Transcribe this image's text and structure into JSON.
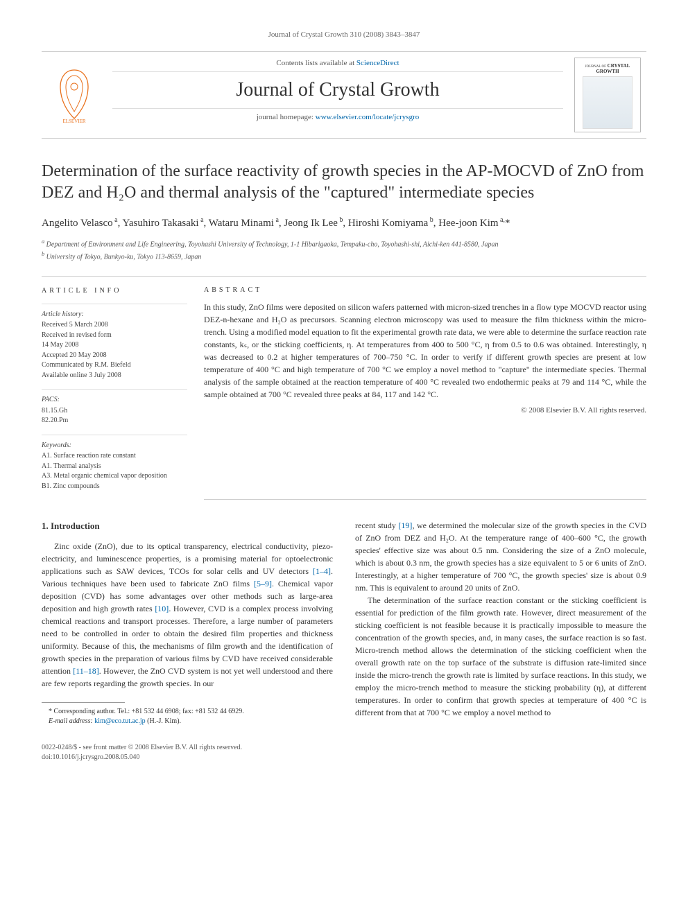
{
  "running_head": "Journal of Crystal Growth 310 (2008) 3843–3847",
  "masthead": {
    "contents_prefix": "Contents lists available at ",
    "contents_link": "ScienceDirect",
    "journal_title": "Journal of Crystal Growth",
    "homepage_prefix": "journal homepage: ",
    "homepage_link": "www.elsevier.com/locate/jcrysgro",
    "cover_label_small": "JOURNAL OF",
    "cover_label": "CRYSTAL GROWTH"
  },
  "article": {
    "title": "Determination of the surface reactivity of growth species in the AP-MOCVD of ZnO from DEZ and H₂O and thermal analysis of the \"captured\" intermediate species",
    "authors_html": "Angelito Velasco<sup> a</sup>, Yasuhiro Takasaki<sup> a</sup>, Wataru Minami<sup> a</sup>, Jeong Ik Lee<sup> b</sup>, Hiroshi Komiyama<sup> b</sup>, Hee-joon Kim<sup> a,</sup>*",
    "affiliations": [
      "a Department of Environment and Life Engineering, Toyohashi University of Technology, 1-1 Hibarigaoka, Tempaku-cho, Toyohashi-shi, Aichi-ken 441-8580, Japan",
      "b University of Tokyo, Bunkyo-ku, Tokyo 113-8659, Japan"
    ]
  },
  "info": {
    "heading": "ARTICLE INFO",
    "history_label": "Article history:",
    "history": [
      "Received 5 March 2008",
      "Received in revised form",
      "14 May 2008",
      "Accepted 20 May 2008",
      "Communicated by R.M. Biefeld",
      "Available online 3 July 2008"
    ],
    "pacs_label": "PACS:",
    "pacs": [
      "81.15.Gh",
      "82.20.Pm"
    ],
    "keywords_label": "Keywords:",
    "keywords": [
      "A1. Surface reaction rate constant",
      "A1. Thermal analysis",
      "A3. Metal organic chemical vapor deposition",
      "B1. Zinc compounds"
    ]
  },
  "abstract": {
    "heading": "ABSTRACT",
    "text": "In this study, ZnO films were deposited on silicon wafers patterned with micron-sized trenches in a flow type MOCVD reactor using DEZ-n-hexane and H₂O as precursors. Scanning electron microscopy was used to measure the film thickness within the micro-trench. Using a modified model equation to fit the experimental growth rate data, we were able to determine the surface reaction rate constants, kₛ, or the sticking coefficients, η. At temperatures from 400 to 500 °C, η from 0.5 to 0.6 was obtained. Interestingly, η was decreased to 0.2 at higher temperatures of 700–750 °C. In order to verify if different growth species are present at low temperature of 400 °C and high temperature of 700 °C we employ a novel method to \"capture\" the intermediate species. Thermal analysis of the sample obtained at the reaction temperature of 400 °C revealed two endothermic peaks at 79 and 114 °C, while the sample obtained at 700 °C revealed three peaks at 84, 117 and 142 °C.",
    "copyright": "© 2008 Elsevier B.V. All rights reserved."
  },
  "body": {
    "section_heading": "1.  Introduction",
    "col1_p1": "Zinc oxide (ZnO), due to its optical transparency, electrical conductivity, piezo-electricity, and luminescence properties, is a promising material for optoelectronic applications such as SAW devices, TCOs for solar cells and UV detectors [1–4]. Various techniques have been used to fabricate ZnO films [5–9]. Chemical vapor deposition (CVD) has some advantages over other methods such as large-area deposition and high growth rates [10]. However, CVD is a complex process involving chemical reactions and transport processes. Therefore, a large number of parameters need to be controlled in order to obtain the desired film properties and thickness uniformity. Because of this, the mechanisms of film growth and the identification of growth species in the preparation of various films by CVD have received considerable attention [11–18]. However, the ZnO CVD system is not yet well understood and there are few reports regarding the growth species. In our",
    "col2_p1": "recent study [19], we determined the molecular size of the growth species in the CVD of ZnO from DEZ and H₂O. At the temperature range of 400–600 °C, the growth species' effective size was about 0.5 nm. Considering the size of a ZnO molecule, which is about 0.3 nm, the growth species has a size equivalent to 5 or 6 units of ZnO. Interestingly, at a higher temperature of 700 °C, the growth species' size is about 0.9 nm. This is equivalent to around 20 units of ZnO.",
    "col2_p2": "The determination of the surface reaction constant or the sticking coefficient is essential for prediction of the film growth rate. However, direct measurement of the sticking coefficient is not feasible because it is practically impossible to measure the concentration of the growth species, and, in many cases, the surface reaction is so fast. Micro-trench method allows the determination of the sticking coefficient when the overall growth rate on the top surface of the substrate is diffusion rate-limited since inside the micro-trench the growth rate is limited by surface reactions. In this study, we employ the micro-trench method to measure the sticking probability (η), at different temperatures. In order to confirm that growth species at temperature of 400 °C is different from that at 700 °C we employ a novel method to"
  },
  "footnote": {
    "corr": "* Corresponding author. Tel.: +81 532 44 6908; fax: +81 532 44 6929.",
    "email_label": "E-mail address: ",
    "email": "kim@eco.tut.ac.jp",
    "email_who": " (H.-J. Kim)."
  },
  "footer": {
    "line1": "0022-0248/$ - see front matter © 2008 Elsevier B.V. All rights reserved.",
    "line2": "doi:10.1016/j.jcrysgro.2008.05.040"
  },
  "refs": {
    "r1_4": "[1–4]",
    "r5_9": "[5–9]",
    "r10": "[10]",
    "r11_18": "[11–18]",
    "r19": "[19]"
  },
  "style": {
    "accent_color": "#0066aa",
    "text_color": "#333333",
    "rule_color": "#cccccc",
    "elsevier_orange": "#e9711c"
  }
}
